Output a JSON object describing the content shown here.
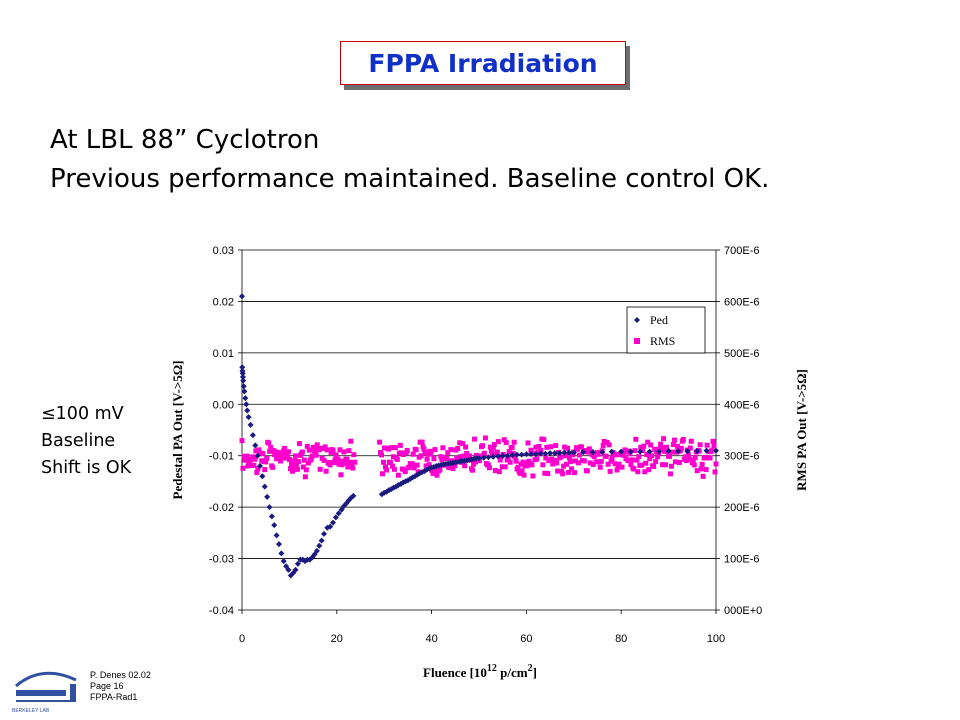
{
  "slide": {
    "title": "FPPA Irradiation",
    "subtitle_line1": "At LBL 88” Cyclotron",
    "subtitle_line2": "Previous performance maintained.  Baseline control OK.",
    "note_lte": "≤",
    "note_line1": "100 mV",
    "note_line2": "Baseline",
    "note_line3": "Shift is OK",
    "footer_author": "P. Denes 02.02",
    "footer_page": "Page 16",
    "footer_file": "FPPA-Rad1",
    "logo_icon": "berkeley-lab-logo-icon",
    "logo_text": "BERKELEY LAB"
  },
  "chart_data": {
    "type": "scatter",
    "x_axis": {
      "label_main": "Fluence [10",
      "label_sup1": "12",
      "label_mid": " p/cm",
      "label_sup2": "2",
      "label_end": "]",
      "min": 0,
      "max": 100,
      "ticks": [
        "0",
        "20",
        "40",
        "60",
        "80",
        "100"
      ]
    },
    "y_left": {
      "label": "Pedestal PA Out  [V->5Ω]",
      "min": -0.04,
      "max": 0.03,
      "ticks": [
        "-0.04",
        "-0.03",
        "-0.02",
        "-0.01",
        "0.00",
        "0.01",
        "0.02",
        "0.03"
      ]
    },
    "y_right": {
      "label": "RMS  PA Out  [V->5Ω]",
      "min": 0,
      "max": 0.0007,
      "ticks": [
        "000E+0",
        "100E-6",
        "200E-6",
        "300E-6",
        "400E-6",
        "500E-6",
        "600E-6",
        "700E-6"
      ]
    },
    "grid": "horizontal",
    "legend_position": "upper-right",
    "series": [
      {
        "name": "Ped",
        "axis": "left",
        "color": "#1a1a80",
        "marker": "diamond",
        "points": [
          [
            0.0,
            0.021
          ],
          [
            0.05,
            0.0072
          ],
          [
            0.1,
            0.0065
          ],
          [
            0.15,
            0.006
          ],
          [
            0.2,
            0.0053
          ],
          [
            0.25,
            0.0046
          ],
          [
            0.35,
            0.0035
          ],
          [
            0.5,
            0.0025
          ],
          [
            0.7,
            0.0012
          ],
          [
            0.9,
            0.0
          ],
          [
            1.1,
            -0.0012
          ],
          [
            1.4,
            -0.0025
          ],
          [
            1.8,
            -0.004
          ],
          [
            2.3,
            -0.006
          ],
          [
            2.8,
            -0.008
          ],
          [
            3.3,
            -0.01
          ],
          [
            3.8,
            -0.012
          ],
          [
            4.3,
            -0.014
          ],
          [
            4.8,
            -0.016
          ],
          [
            5.3,
            -0.018
          ],
          [
            5.8,
            -0.02
          ],
          [
            6.3,
            -0.0218
          ],
          [
            6.8,
            -0.0235
          ],
          [
            7.3,
            -0.0255
          ],
          [
            7.8,
            -0.0272
          ],
          [
            8.3,
            -0.029
          ],
          [
            8.8,
            -0.0305
          ],
          [
            9.3,
            -0.0315
          ],
          [
            9.8,
            -0.0322
          ],
          [
            10.3,
            -0.0333
          ],
          [
            10.8,
            -0.0328
          ],
          [
            11.3,
            -0.0322
          ],
          [
            11.8,
            -0.031
          ],
          [
            12.3,
            -0.0302
          ],
          [
            12.8,
            -0.0302
          ],
          [
            13.3,
            -0.0305
          ],
          [
            13.8,
            -0.0302
          ],
          [
            14.3,
            -0.0302
          ],
          [
            14.8,
            -0.0298
          ],
          [
            15.3,
            -0.0292
          ],
          [
            15.8,
            -0.0285
          ],
          [
            16.3,
            -0.0275
          ],
          [
            16.8,
            -0.0265
          ],
          [
            17.3,
            -0.0252
          ],
          [
            18.0,
            -0.024
          ],
          [
            18.6,
            -0.0238
          ],
          [
            19.2,
            -0.023
          ],
          [
            19.8,
            -0.022
          ],
          [
            20.4,
            -0.0212
          ],
          [
            21.0,
            -0.0205
          ],
          [
            21.5,
            -0.0198
          ],
          [
            22.0,
            -0.0193
          ],
          [
            22.5,
            -0.0187
          ],
          [
            23.0,
            -0.0182
          ],
          [
            23.5,
            -0.0178
          ],
          [
            29.5,
            -0.0175
          ],
          [
            30.0,
            -0.0172
          ],
          [
            30.5,
            -0.017
          ],
          [
            31.0,
            -0.0167
          ],
          [
            31.5,
            -0.0165
          ],
          [
            32.0,
            -0.0162
          ],
          [
            32.5,
            -0.016
          ],
          [
            33.0,
            -0.0157
          ],
          [
            33.5,
            -0.0155
          ],
          [
            34.0,
            -0.0152
          ],
          [
            34.5,
            -0.015
          ],
          [
            35.0,
            -0.0148
          ],
          [
            35.5,
            -0.0145
          ],
          [
            36.0,
            -0.0142
          ],
          [
            36.5,
            -0.014
          ],
          [
            37.0,
            -0.0137
          ],
          [
            37.5,
            -0.0134
          ],
          [
            38.0,
            -0.0132
          ],
          [
            38.5,
            -0.013
          ],
          [
            39.0,
            -0.0127
          ],
          [
            39.5,
            -0.0125
          ],
          [
            40.0,
            -0.0123
          ],
          [
            40.5,
            -0.0122
          ],
          [
            41.0,
            -0.012
          ],
          [
            41.5,
            -0.0119
          ],
          [
            42.0,
            -0.0118
          ],
          [
            42.5,
            -0.0117
          ],
          [
            43.0,
            -0.0116
          ],
          [
            43.5,
            -0.0115
          ],
          [
            44.0,
            -0.0115
          ],
          [
            44.5,
            -0.0114
          ],
          [
            45.0,
            -0.0113
          ],
          [
            45.5,
            -0.0112
          ],
          [
            46.0,
            -0.0111
          ],
          [
            46.5,
            -0.011
          ],
          [
            47.0,
            -0.011
          ],
          [
            47.5,
            -0.0109
          ],
          [
            48.0,
            -0.0108
          ],
          [
            48.5,
            -0.0107
          ],
          [
            49.0,
            -0.0106
          ],
          [
            49.5,
            -0.0105
          ],
          [
            50.0,
            -0.0105
          ],
          [
            51.0,
            -0.0104
          ],
          [
            52.0,
            -0.0103
          ],
          [
            53.0,
            -0.0102
          ],
          [
            54.0,
            -0.0101
          ],
          [
            55.0,
            -0.01
          ],
          [
            56.0,
            -0.01
          ],
          [
            57.0,
            -0.0099
          ],
          [
            58.0,
            -0.0098
          ],
          [
            59.0,
            -0.0098
          ],
          [
            60.0,
            -0.0097
          ],
          [
            61.0,
            -0.0097
          ],
          [
            62.0,
            -0.0097
          ],
          [
            63.0,
            -0.0096
          ],
          [
            64.0,
            -0.0096
          ],
          [
            65.0,
            -0.0095
          ],
          [
            66.0,
            -0.0095
          ],
          [
            67.0,
            -0.0095
          ],
          [
            68.0,
            -0.0094
          ],
          [
            69.0,
            -0.0094
          ],
          [
            70.0,
            -0.0094
          ],
          [
            72.0,
            -0.0093
          ],
          [
            74.0,
            -0.0093
          ],
          [
            76.0,
            -0.0093
          ],
          [
            78.0,
            -0.0092
          ],
          [
            80.0,
            -0.0092
          ],
          [
            82.0,
            -0.0092
          ],
          [
            84.0,
            -0.0092
          ],
          [
            86.0,
            -0.0092
          ],
          [
            88.0,
            -0.0092
          ],
          [
            90.0,
            -0.0091
          ],
          [
            92.0,
            -0.0091
          ],
          [
            94.0,
            -0.0091
          ],
          [
            96.0,
            -0.0091
          ],
          [
            98.0,
            -0.009
          ],
          [
            100.0,
            -0.009
          ]
        ]
      },
      {
        "name": "RMS",
        "axis": "right",
        "color": "#ff00cc",
        "marker": "square",
        "x_start": 0,
        "x_end": 100,
        "gap": [
          24,
          29
        ],
        "y_center": 0.000297,
        "y_spread": 2.5e-05,
        "point_count": 480
      }
    ]
  }
}
